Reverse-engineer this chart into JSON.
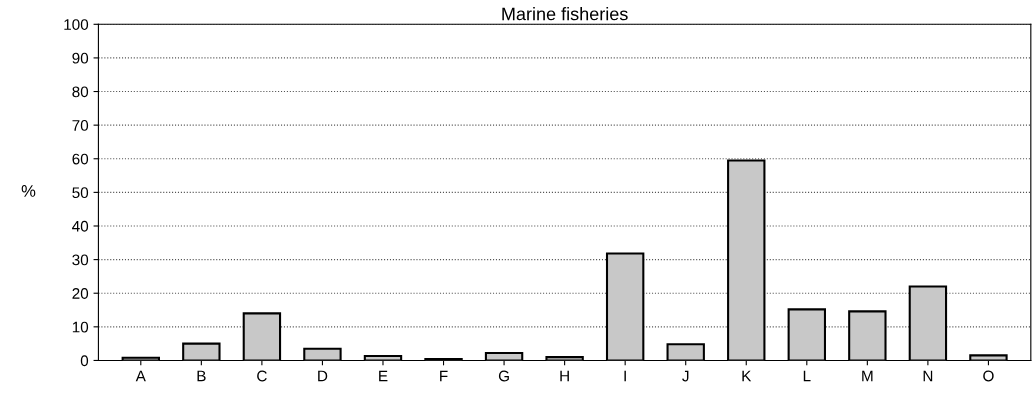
{
  "chart_data": {
    "type": "bar",
    "title": "Marine fisheries",
    "ylabel": "%",
    "categories": [
      "A",
      "B",
      "C",
      "D",
      "E",
      "F",
      "G",
      "H",
      "I",
      "J",
      "K",
      "L",
      "M",
      "N",
      "O"
    ],
    "values": [
      0.8,
      5,
      14,
      3.5,
      1.3,
      0.4,
      2.2,
      1,
      31.8,
      4.8,
      59.5,
      15.2,
      14.6,
      22,
      1.5
    ],
    "color": "#c8c8c8",
    "ylim": [
      0,
      100
    ],
    "yticks": [
      0,
      10,
      20,
      30,
      40,
      50,
      60,
      70,
      80,
      90,
      100
    ],
    "grid": "y",
    "line_style": "dotted"
  }
}
